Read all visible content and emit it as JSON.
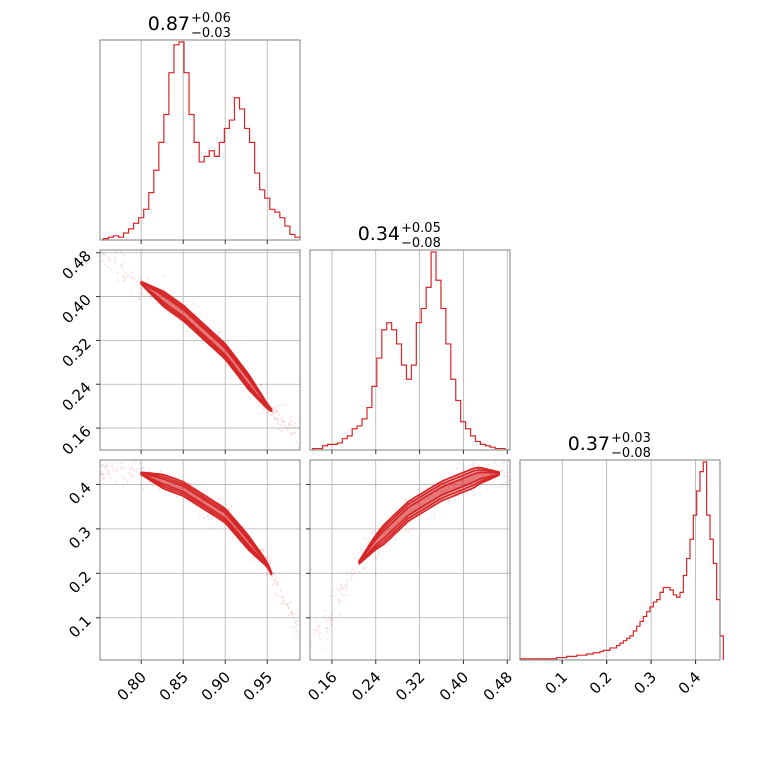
{
  "chart_data": {
    "type": "corner",
    "color": "#d62728",
    "parameters": [
      {
        "summary": {
          "median": "0.87",
          "plus": "+0.06",
          "minus": "−0.03"
        },
        "range": [
          0.751,
          0.989
        ],
        "ticks": [
          "0.80",
          "0.85",
          "0.90",
          "0.95"
        ],
        "tick_values": [
          0.8,
          0.85,
          0.9,
          0.95
        ],
        "histogram": {
          "start": 0.755,
          "width": 0.006,
          "counts": [
            0.5,
            1,
            1.5,
            1,
            2.5,
            4,
            6,
            8,
            11,
            17,
            25,
            35,
            45,
            60,
            70,
            71,
            60,
            45,
            35,
            28,
            30,
            32,
            30,
            35,
            40,
            43,
            51,
            47,
            40,
            35,
            24,
            18,
            15,
            11,
            10,
            8,
            5,
            2,
            1
          ]
        }
      },
      {
        "summary": {
          "median": "0.34",
          "plus": "+0.05",
          "minus": "−0.08"
        },
        "range": [
          0.12,
          0.485
        ],
        "ticks": [
          "0.16",
          "0.24",
          "0.32",
          "0.40",
          "0.48"
        ],
        "tick_values": [
          0.16,
          0.24,
          0.32,
          0.4,
          0.48
        ],
        "histogram": {
          "start": 0.125,
          "width": 0.009,
          "counts": [
            1,
            1,
            3,
            4,
            4,
            5,
            8,
            10,
            15,
            17,
            22,
            30,
            45,
            65,
            85,
            90,
            85,
            75,
            60,
            50,
            60,
            90,
            100,
            115,
            140,
            120,
            100,
            75,
            50,
            35,
            20,
            15,
            10,
            6,
            4,
            3,
            2,
            1,
            1
          ]
        }
      },
      {
        "summary": {
          "median": "0.37",
          "plus": "+0.03",
          "minus": "−0.08"
        },
        "range": [
          0.005,
          0.455
        ],
        "ticks": [
          "0.1",
          "0.2",
          "0.3",
          "0.4"
        ],
        "tick_values": [
          0.1,
          0.2,
          0.3,
          0.4
        ],
        "histogram": {
          "start": 0.005,
          "width": 0.0075,
          "counts": [
            0.5,
            0.5,
            0.5,
            0.5,
            0.5,
            0.5,
            0.5,
            0.5,
            0.5,
            0.5,
            0.5,
            1,
            1,
            1,
            1.5,
            1.5,
            1.5,
            2,
            2,
            2,
            2.5,
            2.5,
            3,
            3,
            3.5,
            4,
            4,
            5,
            5,
            6,
            7,
            8,
            9,
            10,
            12,
            14,
            16,
            18,
            20,
            22,
            24,
            25,
            28,
            30,
            30,
            29,
            27,
            26,
            28,
            35,
            42,
            50,
            60,
            70,
            78,
            82,
            60,
            50,
            40,
            25,
            10
          ]
        }
      }
    ],
    "pairs": [
      {
        "x_param": 0,
        "y_param": 1,
        "ridge": [
          [
            0.755,
            0.48
          ],
          [
            0.8,
            0.425
          ],
          [
            0.85,
            0.37
          ],
          [
            0.9,
            0.3
          ],
          [
            0.95,
            0.2
          ],
          [
            0.985,
            0.15
          ]
        ],
        "contour_half_width": [
          0.014,
          0.01,
          0.006
        ],
        "ridge_range": [
          0.8,
          0.955
        ]
      },
      {
        "x_param": 0,
        "y_param": 2,
        "ridge": [
          [
            0.755,
            0.44
          ],
          [
            0.8,
            0.425
          ],
          [
            0.85,
            0.39
          ],
          [
            0.9,
            0.33
          ],
          [
            0.95,
            0.22
          ],
          [
            0.985,
            0.08
          ]
        ],
        "contour_half_width": [
          0.016,
          0.011,
          0.006
        ],
        "ridge_range": [
          0.8,
          0.955
        ]
      },
      {
        "x_param": 1,
        "y_param": 2,
        "ridge": [
          [
            0.14,
            0.07
          ],
          [
            0.2,
            0.21
          ],
          [
            0.24,
            0.27
          ],
          [
            0.3,
            0.34
          ],
          [
            0.36,
            0.385
          ],
          [
            0.43,
            0.42
          ],
          [
            0.47,
            0.425
          ]
        ],
        "contour_half_width": [
          0.022,
          0.016,
          0.009
        ],
        "ridge_range": [
          0.21,
          0.465
        ]
      }
    ]
  }
}
